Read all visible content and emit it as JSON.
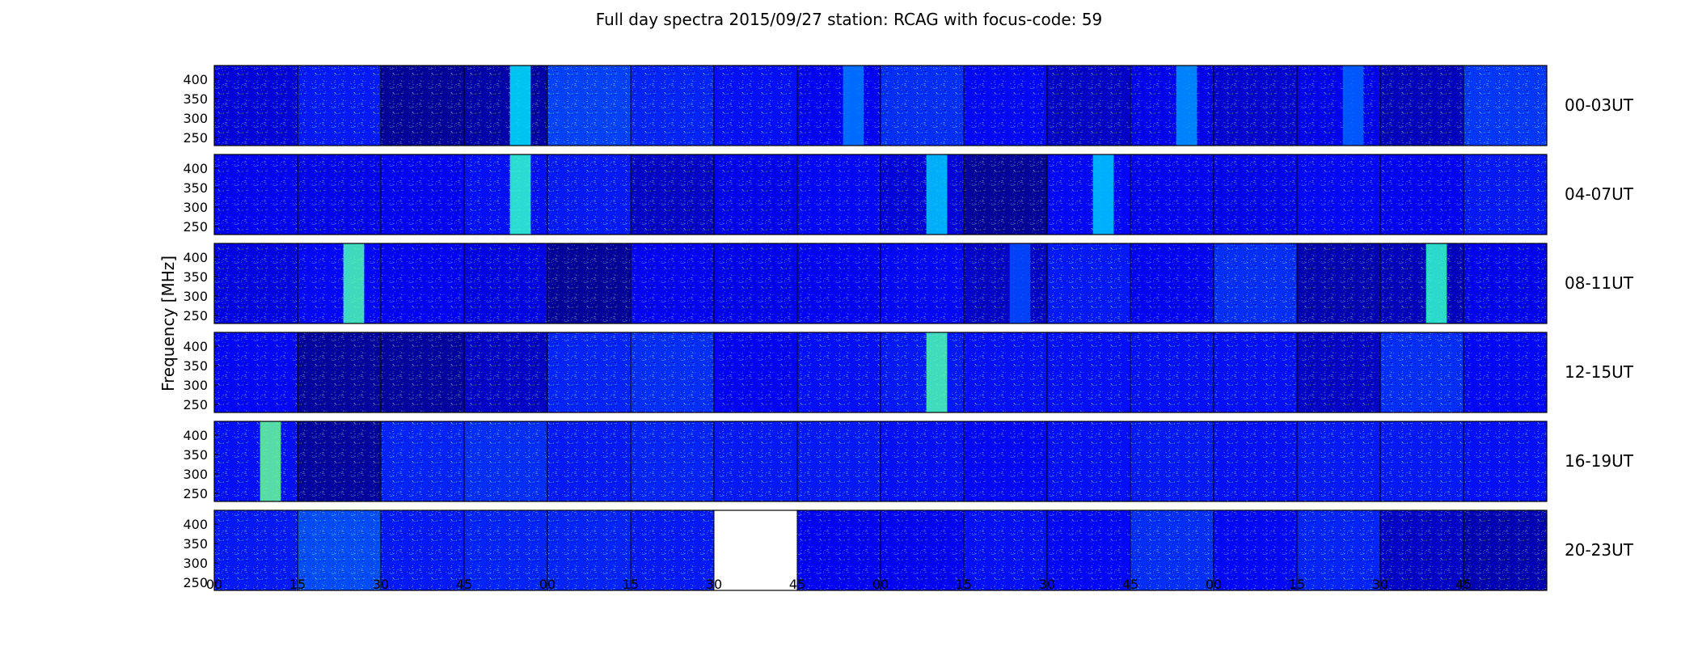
{
  "chart_data": {
    "type": "heatmap",
    "title": "Full day spectra 2015/09/27 station: RCAG with focus-code: 59",
    "ylabel": "Frequency [MHz]",
    "y_ticks": [
      "400",
      "350",
      "300",
      "250"
    ],
    "x_ticks": [
      "00",
      "15",
      "30",
      "45",
      "00",
      "15",
      "30",
      "45",
      "00",
      "15",
      "30",
      "45",
      "00",
      "15",
      "30",
      "45"
    ],
    "colormap": [
      "#00007f",
      "#0000ff",
      "#007fff",
      "#00ffff",
      "#7fff7f"
    ],
    "rows": [
      {
        "label": "00-03UT",
        "levels": [
          0.18,
          0.3,
          0.05,
          0.08,
          0.38,
          0.32,
          0.28,
          0.24,
          0.34,
          0.26,
          0.14,
          0.22,
          0.16,
          0.22,
          0.12,
          0.36
        ],
        "stripes": [
          null,
          null,
          null,
          0.7,
          null,
          null,
          null,
          0.5,
          null,
          null,
          null,
          0.55,
          null,
          0.45,
          null,
          null
        ]
      },
      {
        "label": "04-07UT",
        "levels": [
          0.24,
          0.22,
          0.24,
          0.28,
          0.3,
          0.14,
          0.22,
          0.26,
          0.18,
          0.05,
          0.26,
          0.24,
          0.22,
          0.26,
          0.24,
          0.3
        ],
        "stripes": [
          null,
          null,
          null,
          0.85,
          null,
          null,
          null,
          null,
          0.65,
          null,
          0.65,
          null,
          null,
          null,
          null,
          null
        ]
      },
      {
        "label": "08-11UT",
        "levels": [
          0.2,
          0.26,
          0.24,
          0.2,
          0.05,
          0.24,
          0.22,
          0.24,
          0.26,
          0.14,
          0.3,
          0.24,
          0.34,
          0.1,
          0.12,
          0.22
        ],
        "stripes": [
          null,
          0.9,
          null,
          null,
          null,
          null,
          null,
          null,
          null,
          0.4,
          null,
          null,
          null,
          null,
          0.85,
          null
        ]
      },
      {
        "label": "12-15UT",
        "levels": [
          0.26,
          0.06,
          0.06,
          0.14,
          0.32,
          0.34,
          0.24,
          0.28,
          0.3,
          0.28,
          0.28,
          0.28,
          0.28,
          0.14,
          0.34,
          0.26
        ],
        "stripes": [
          null,
          null,
          null,
          null,
          null,
          null,
          null,
          null,
          0.9,
          null,
          null,
          null,
          null,
          null,
          null,
          null
        ]
      },
      {
        "label": "16-19UT",
        "levels": [
          0.28,
          0.06,
          0.32,
          0.34,
          0.3,
          0.32,
          0.3,
          0.3,
          0.28,
          0.26,
          0.28,
          0.3,
          0.28,
          0.3,
          0.3,
          0.28
        ],
        "stripes": [
          0.95,
          null,
          null,
          null,
          null,
          null,
          null,
          null,
          null,
          null,
          null,
          null,
          null,
          null,
          null,
          null
        ]
      },
      {
        "label": "20-23UT",
        "levels": [
          0.3,
          0.4,
          0.3,
          0.32,
          0.32,
          0.3,
          null,
          0.24,
          0.24,
          0.28,
          0.26,
          0.34,
          0.26,
          0.32,
          0.14,
          0.1
        ],
        "stripes": [
          null,
          null,
          null,
          null,
          null,
          null,
          null,
          null,
          null,
          null,
          null,
          null,
          null,
          null,
          null,
          null
        ]
      }
    ]
  }
}
